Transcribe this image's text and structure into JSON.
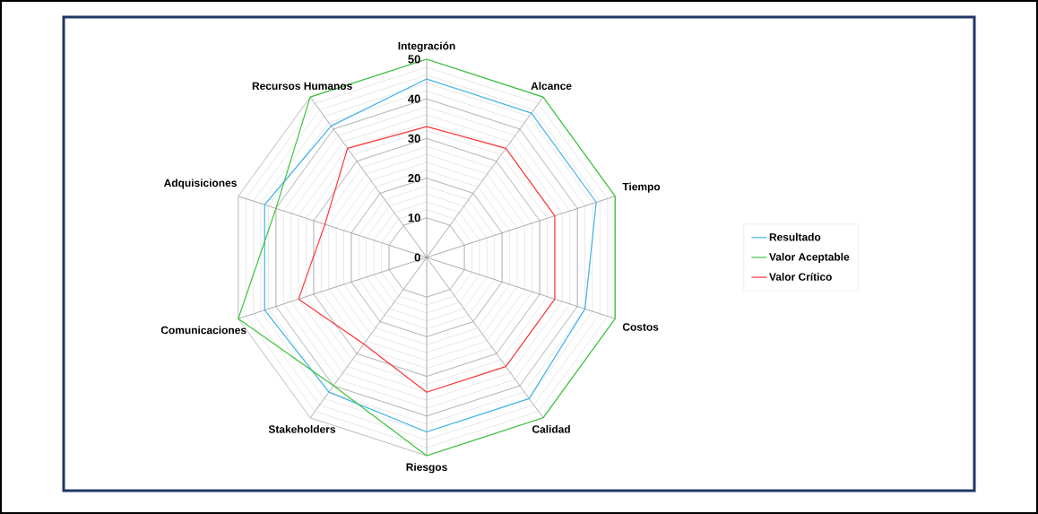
{
  "chart_data": {
    "type": "radar",
    "categories": [
      "Integración",
      "Alcance",
      "Tiempo",
      "Costos",
      "Calidad",
      "Riesgos",
      "Stakeholders",
      "Comunicaciones",
      "Adquisiciones",
      "Recursos Humanos"
    ],
    "series": [
      {
        "name": "Resultado",
        "color": "#3eb3e8",
        "values": [
          45,
          45,
          45,
          42,
          44,
          44,
          42,
          43,
          43,
          41
        ]
      },
      {
        "name": "Valor Aceptable",
        "color": "#3cc43c",
        "values": [
          50,
          50,
          50,
          50,
          50,
          50,
          40,
          50,
          40,
          50
        ]
      },
      {
        "name": "Valor Crítico",
        "color": "#ff3535",
        "values": [
          33,
          34,
          34,
          34,
          34,
          34,
          27,
          34,
          27,
          34
        ]
      }
    ],
    "ylim": [
      0,
      50
    ],
    "yticks": [
      0,
      10,
      20,
      30,
      40,
      50
    ],
    "grid": true,
    "legend": "right"
  }
}
